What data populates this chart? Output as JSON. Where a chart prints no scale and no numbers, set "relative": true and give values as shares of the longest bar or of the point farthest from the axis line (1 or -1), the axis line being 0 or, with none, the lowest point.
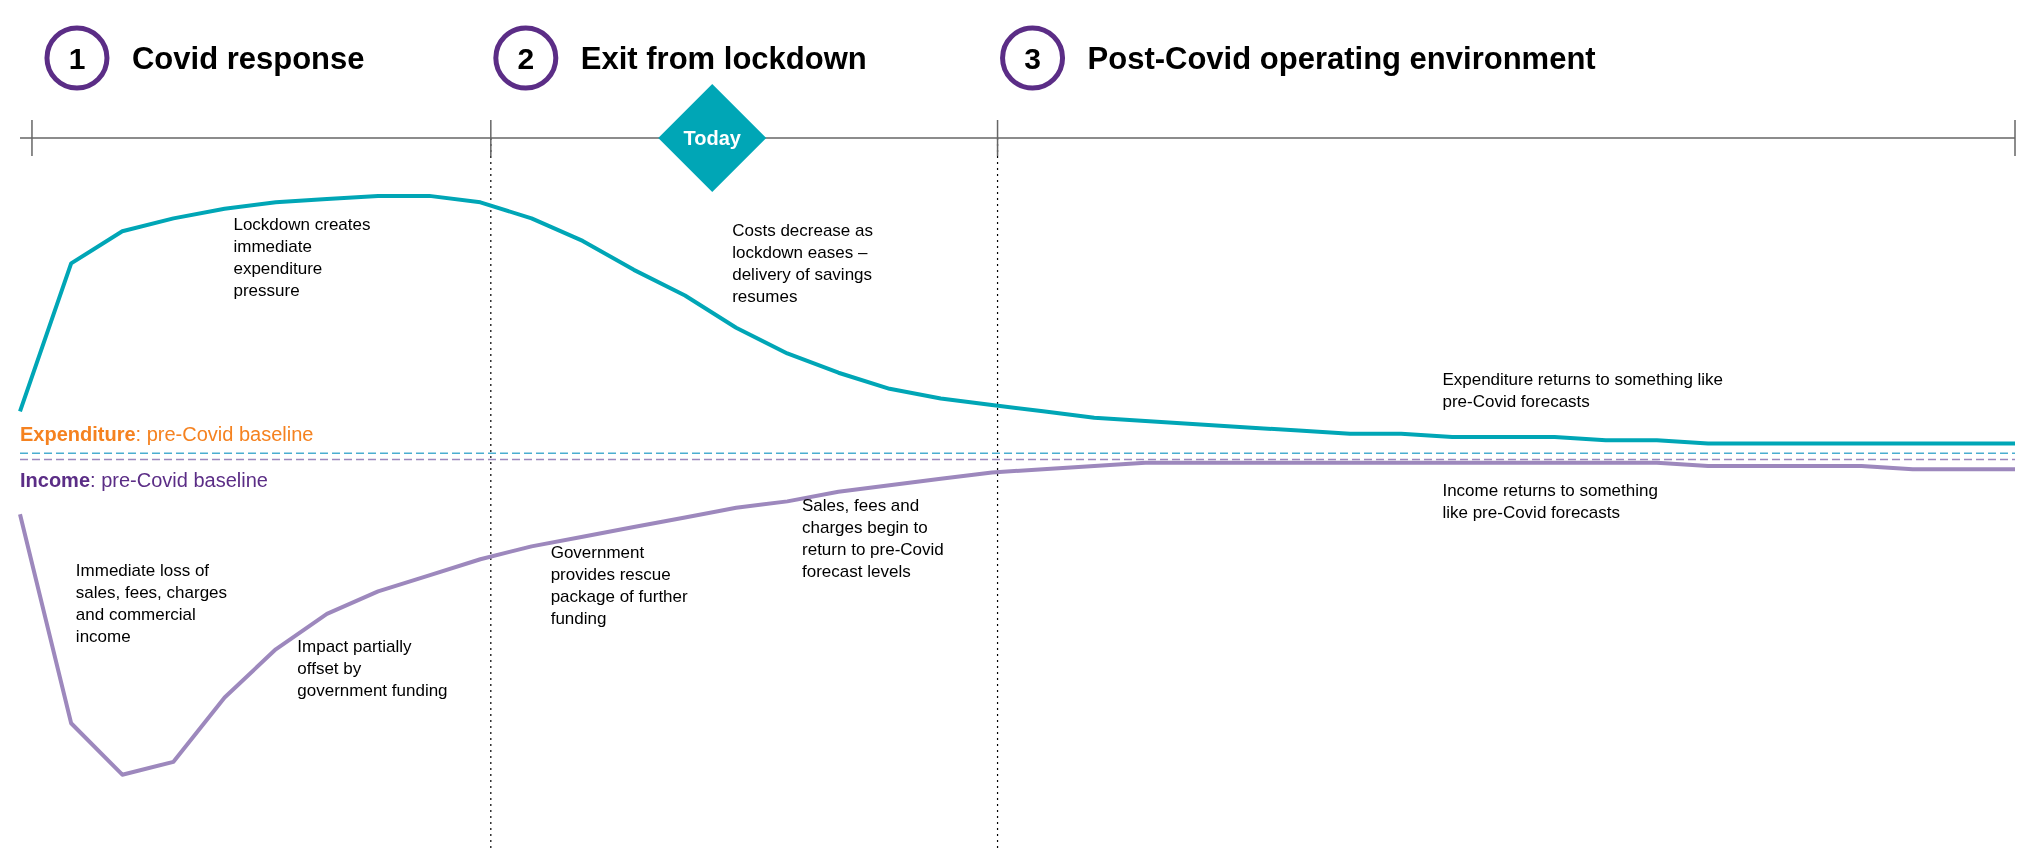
{
  "chart_data": {
    "type": "line",
    "relative": true,
    "tick_labels": false,
    "line_style": "solid",
    "categories": [
      null,
      null,
      null,
      null,
      null,
      null,
      null,
      null,
      null,
      null,
      null,
      null,
      null,
      null,
      null,
      null,
      null,
      null,
      null,
      null,
      null,
      null,
      null,
      null,
      null,
      null,
      null,
      null,
      null,
      null,
      null,
      null,
      null,
      null,
      null,
      null,
      null,
      null,
      null,
      null
    ],
    "series": [
      {
        "color": "#00a6b6",
        "values": [
          0.13,
          0.59,
          0.69,
          0.73,
          0.76,
          0.78,
          0.79,
          0.8,
          0.8,
          0.78,
          0.73,
          0.66,
          0.57,
          0.49,
          0.39,
          0.31,
          0.25,
          0.2,
          0.17,
          0.15,
          0.13,
          0.11,
          0.1,
          0.09,
          0.08,
          0.07,
          0.06,
          0.06,
          0.05,
          0.05,
          0.05,
          0.04,
          0.04,
          0.03,
          0.03,
          0.03,
          0.03,
          0.03,
          0.03,
          0.03
        ]
      },
      {
        "color": "#9d88bd",
        "values": [
          -0.19,
          -0.84,
          -1,
          -0.96,
          -0.76,
          -0.61,
          -0.5,
          -0.43,
          -0.38,
          -0.33,
          -0.29,
          -0.26,
          -0.23,
          -0.2,
          -0.17,
          -0.15,
          -0.12,
          -0.1,
          -0.08,
          -0.06,
          -0.05,
          -0.04,
          -0.03,
          -0.03,
          -0.03,
          -0.03,
          -0.03,
          -0.03,
          -0.03,
          -0.03,
          -0.03,
          -0.03,
          -0.03,
          -0.04,
          -0.04,
          -0.04,
          -0.04,
          -0.05,
          -0.05,
          -0.05
        ]
      }
    ],
    "ref_lines": [
      {
        "axis": "y",
        "value": 0,
        "label": "Expenditure: pre-Covid baseline",
        "color": "#4aaed0",
        "line_style": "dashed"
      },
      {
        "axis": "y",
        "value": -0.02,
        "label": "Income: pre-Covid baseline",
        "color": "#9d88bd",
        "line_style": "dashed"
      }
    ],
    "annotations": [
      "1",
      "Covid response",
      "2",
      "Exit from lockdown",
      "3",
      "Post-Covid operating environment",
      "Today",
      "Lockdown creates\nimmediate\nexpenditure\npressure",
      "Costs decrease as\nlockdown eases –\ndelivery of savings\nresumes",
      "Expenditure returns to something like\npre-Covid forecasts",
      "Immediate loss of\nsales, fees, charges\nand commercial\nincome",
      "Impact partially\noffset by\ngovernment funding",
      "Government\nprovides rescue\npackage of further\nfunding",
      "Sales, fees and\ncharges begin to\nreturn to pre-Covid\nforecast levels",
      "Income returns to something\nlike pre-Covid forecasts"
    ]
  }
}
